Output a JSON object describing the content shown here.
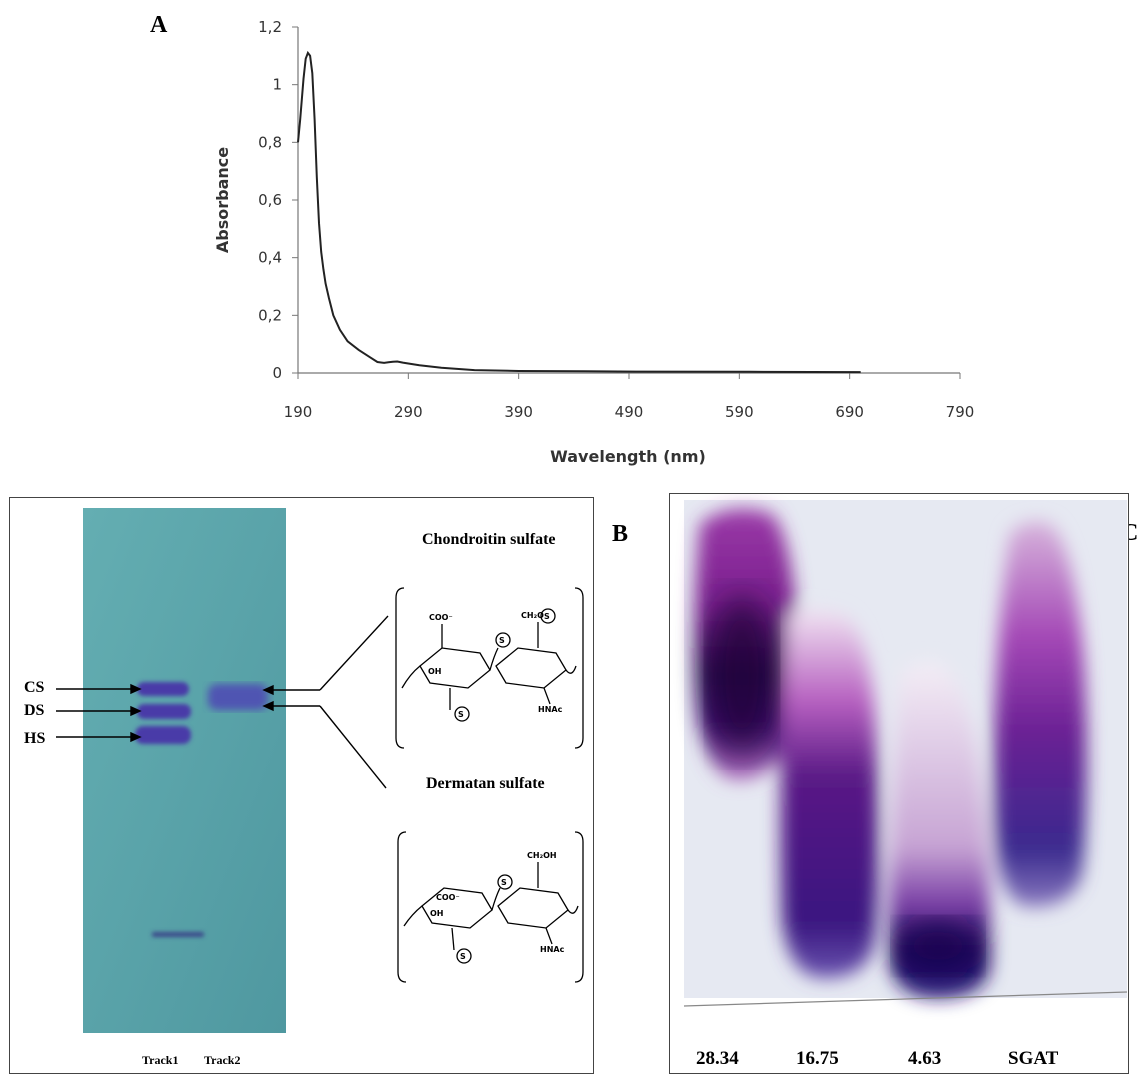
{
  "panels": {
    "a": "A",
    "b": "B",
    "c": "C"
  },
  "chart_data": {
    "type": "line",
    "xlabel": "Wavelength (nm)",
    "ylabel": "Absorbance",
    "xlim": [
      190,
      790
    ],
    "ylim": [
      0,
      1.2
    ],
    "xticks": [
      190,
      290,
      390,
      490,
      590,
      690,
      790
    ],
    "yticks": [
      "0",
      "0,2",
      "0,4",
      "0,6",
      "0,8",
      "1",
      "1,2"
    ],
    "grid": false,
    "series": [
      {
        "x": [
          190,
          192,
          195,
          197,
          199,
          201,
          203,
          205,
          207,
          209,
          211,
          213,
          215,
          218,
          222,
          228,
          235,
          245,
          255,
          262,
          268,
          272,
          276,
          280,
          285,
          290,
          300,
          320,
          350,
          390,
          450,
          500,
          600,
          700
        ],
        "y": [
          0.8,
          0.88,
          1.02,
          1.09,
          1.11,
          1.1,
          1.04,
          0.88,
          0.68,
          0.52,
          0.42,
          0.36,
          0.31,
          0.26,
          0.2,
          0.15,
          0.11,
          0.08,
          0.055,
          0.038,
          0.035,
          0.037,
          0.039,
          0.04,
          0.036,
          0.033,
          0.027,
          0.018,
          0.01,
          0.007,
          0.006,
          0.005,
          0.004,
          0.003
        ]
      }
    ]
  },
  "panel_b": {
    "bands": [
      "CS",
      "DS",
      "HS"
    ],
    "tracks": [
      "Track1",
      "Track2"
    ],
    "structures": [
      "Chondroitin sulfate",
      "Dermatan sulfate"
    ],
    "mol_text": {
      "coo": "COO⁻",
      "oh": "OH",
      "ch2os": "CH₂O",
      "ch2oh": "CH₂OH",
      "s": "S",
      "hnac": "HNAc"
    }
  },
  "panel_c": {
    "lanes": [
      "28.34",
      "16.75",
      "4.63",
      "SGAT"
    ]
  },
  "colors": {
    "gel_b": "#5aa3a8",
    "band_b": "#4a3fa8",
    "stain_c": "#3d0d6e"
  }
}
